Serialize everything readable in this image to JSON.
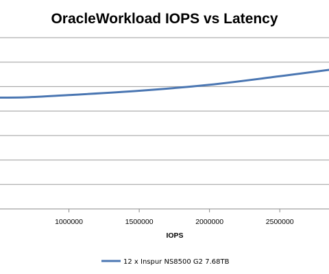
{
  "chart_data": {
    "type": "line",
    "title": "OracleWorkload IOPS vs Latency",
    "xlabel": "IOPS",
    "ylabel": "",
    "x_ticks": [
      "1000000",
      "1500000",
      "2000000",
      "2500000"
    ],
    "x_tick_values": [
      1000000,
      1500000,
      2000000,
      2500000
    ],
    "xlim": [
      500000,
      2850000
    ],
    "ylim": [
      0,
      1.0
    ],
    "grid": true,
    "legend_position": "bottom",
    "series": [
      {
        "name": "12 x Inspur NS8500 G2 7.68TB",
        "color": "#4a76b2",
        "points": [
          [
            500000,
            0.65
          ],
          [
            700000,
            0.652
          ],
          [
            1000000,
            0.665
          ],
          [
            1500000,
            0.69
          ],
          [
            2000000,
            0.725
          ],
          [
            2500000,
            0.775
          ],
          [
            2850000,
            0.812
          ]
        ]
      }
    ]
  }
}
